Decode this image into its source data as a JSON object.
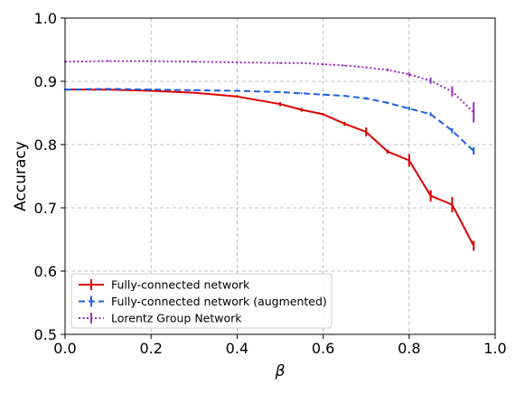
{
  "chart_data": {
    "type": "line",
    "title": "",
    "xlabel": "β",
    "ylabel": "Accuracy",
    "xlim": [
      0.0,
      1.0
    ],
    "ylim": [
      0.5,
      1.0
    ],
    "xticks": [
      "0.0",
      "0.2",
      "0.4",
      "0.6",
      "0.8",
      "1.0"
    ],
    "yticks": [
      "0.5",
      "0.6",
      "0.7",
      "0.8",
      "0.9",
      "1.0"
    ],
    "grid": true,
    "legend_position": "lower-left",
    "series": [
      {
        "name": "Fully-connected network",
        "color": "#dd0000",
        "dash": "solid",
        "x": [
          0.0,
          0.1,
          0.2,
          0.3,
          0.4,
          0.5,
          0.55,
          0.6,
          0.65,
          0.7,
          0.75,
          0.8,
          0.85,
          0.9,
          0.95
        ],
        "y": [
          0.887,
          0.887,
          0.885,
          0.882,
          0.876,
          0.864,
          0.855,
          0.848,
          0.833,
          0.82,
          0.789,
          0.775,
          0.719,
          0.705,
          0.64
        ],
        "err": [
          0.001,
          0.001,
          0.001,
          0.001,
          0.002,
          0.003,
          0.003,
          0.002,
          0.003,
          0.007,
          0.003,
          0.01,
          0.009,
          0.012,
          0.008
        ]
      },
      {
        "name": "Fully-connected network (augmented)",
        "color": "#1f5fe0",
        "dash": "dashed",
        "x": [
          0.0,
          0.1,
          0.2,
          0.3,
          0.4,
          0.45,
          0.5,
          0.55,
          0.6,
          0.65,
          0.7,
          0.75,
          0.8,
          0.85,
          0.9,
          0.95
        ],
        "y": [
          0.887,
          0.888,
          0.887,
          0.886,
          0.885,
          0.884,
          0.883,
          0.881,
          0.879,
          0.877,
          0.873,
          0.866,
          0.857,
          0.848,
          0.822,
          0.79
        ],
        "err": [
          0.001,
          0.001,
          0.001,
          0.001,
          0.001,
          0.001,
          0.001,
          0.001,
          0.001,
          0.001,
          0.002,
          0.002,
          0.003,
          0.003,
          0.004,
          0.006
        ]
      },
      {
        "name": "Lorentz Group Network",
        "color": "#9b2fbf",
        "dash": "dotted",
        "x": [
          0.0,
          0.1,
          0.2,
          0.3,
          0.4,
          0.5,
          0.55,
          0.6,
          0.65,
          0.7,
          0.75,
          0.8,
          0.85,
          0.9,
          0.95
        ],
        "y": [
          0.931,
          0.932,
          0.932,
          0.931,
          0.93,
          0.929,
          0.929,
          0.927,
          0.925,
          0.922,
          0.918,
          0.911,
          0.901,
          0.884,
          0.851
        ],
        "err": [
          0.001,
          0.001,
          0.001,
          0.001,
          0.001,
          0.001,
          0.001,
          0.001,
          0.001,
          0.001,
          0.002,
          0.003,
          0.005,
          0.008,
          0.016
        ]
      }
    ]
  }
}
